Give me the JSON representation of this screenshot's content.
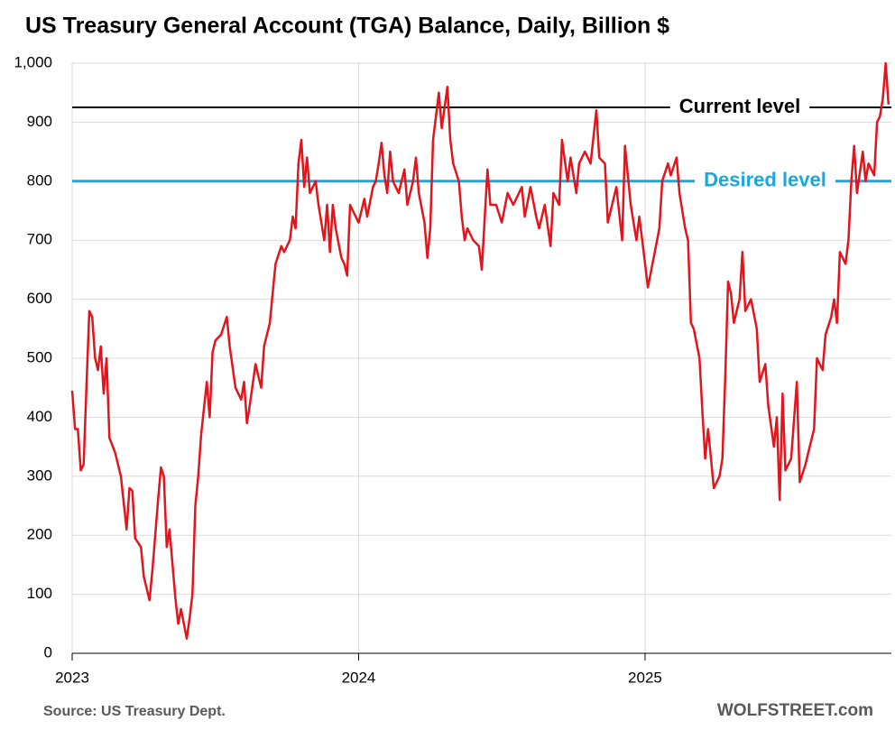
{
  "chart_data": {
    "type": "line",
    "title": "US Treasury General Account (TGA) Balance, Daily, Billion $",
    "source": "Source: US Treasury Dept.",
    "credit": "WOLFSTREET.com",
    "color": "#e3141b",
    "grid": true,
    "xlim": [
      2023,
      2025.86
    ],
    "xticks": [
      2023,
      2024,
      2025
    ],
    "ylim": [
      0,
      1000
    ],
    "yticks": [
      0,
      100,
      200,
      300,
      400,
      500,
      600,
      700,
      800,
      900,
      {
        "value": 1000,
        "label": "1,000"
      }
    ],
    "reference_lines": [
      {
        "label": "Current level",
        "value": 925,
        "color": "#000000"
      },
      {
        "label": "Desired level",
        "value": 800,
        "color": "#1aa7dc"
      }
    ],
    "x": [
      2023.0,
      2023.01,
      2023.02,
      2023.03,
      2023.04,
      2023.05,
      2023.06,
      2023.07,
      2023.08,
      2023.09,
      2023.1,
      2023.11,
      2023.12,
      2023.13,
      2023.15,
      2023.17,
      2023.19,
      2023.2,
      2023.21,
      2023.22,
      2023.24,
      2023.25,
      2023.27,
      2023.28,
      2023.3,
      2023.31,
      2023.32,
      2023.33,
      2023.34,
      2023.36,
      2023.37,
      2023.38,
      2023.4,
      2023.41,
      2023.42,
      2023.43,
      2023.44,
      2023.45,
      2023.47,
      2023.48,
      2023.49,
      2023.5,
      2023.52,
      2023.54,
      2023.55,
      2023.57,
      2023.59,
      2023.6,
      2023.61,
      2023.62,
      2023.64,
      2023.66,
      2023.67,
      2023.69,
      2023.7,
      2023.71,
      2023.73,
      2023.74,
      2023.76,
      2023.77,
      2023.78,
      2023.79,
      2023.8,
      2023.81,
      2023.82,
      2023.83,
      2023.85,
      2023.86,
      2023.88,
      2023.89,
      2023.9,
      2023.91,
      2023.92,
      2023.94,
      2023.95,
      2023.96,
      2023.97,
      2023.98,
      2024.0,
      2024.02,
      2024.03,
      2024.05,
      2024.06,
      2024.07,
      2024.08,
      2024.09,
      2024.1,
      2024.11,
      2024.12,
      2024.14,
      2024.16,
      2024.17,
      2024.19,
      2024.2,
      2024.21,
      2024.23,
      2024.24,
      2024.25,
      2024.26,
      2024.28,
      2024.29,
      2024.31,
      2024.32,
      2024.33,
      2024.35,
      2024.36,
      2024.37,
      2024.38,
      2024.4,
      2024.42,
      2024.43,
      2024.45,
      2024.46,
      2024.48,
      2024.5,
      2024.52,
      2024.54,
      2024.55,
      2024.57,
      2024.58,
      2024.6,
      2024.62,
      2024.63,
      2024.65,
      2024.67,
      2024.68,
      2024.7,
      2024.71,
      2024.73,
      2024.74,
      2024.76,
      2024.77,
      2024.79,
      2024.81,
      2024.83,
      2024.84,
      2024.86,
      2024.87,
      2024.89,
      2024.9,
      2024.92,
      2024.93,
      2024.95,
      2024.97,
      2024.98,
      2025.0,
      2025.01,
      2025.03,
      2025.05,
      2025.06,
      2025.08,
      2025.09,
      2025.11,
      2025.12,
      2025.14,
      2025.15,
      2025.16,
      2025.17,
      2025.19,
      2025.2,
      2025.21,
      2025.22,
      2025.24,
      2025.26,
      2025.27,
      2025.28,
      2025.29,
      2025.3,
      2025.31,
      2025.33,
      2025.34,
      2025.35,
      2025.37,
      2025.39,
      2025.4,
      2025.42,
      2025.43,
      2025.45,
      2025.46,
      2025.47,
      2025.48,
      2025.49,
      2025.51,
      2025.53,
      2025.54,
      2025.56,
      2025.57,
      2025.59,
      2025.6,
      2025.62,
      2025.63,
      2025.65,
      2025.66,
      2025.67,
      2025.68,
      2025.7,
      2025.71,
      2025.72,
      2025.73,
      2025.74,
      2025.76,
      2025.77,
      2025.78,
      2025.8,
      2025.81,
      2025.82,
      2025.83,
      2025.84,
      2025.85
    ],
    "values": [
      445,
      380,
      380,
      310,
      320,
      455,
      580,
      570,
      500,
      480,
      520,
      440,
      500,
      365,
      340,
      300,
      210,
      280,
      275,
      195,
      180,
      130,
      90,
      140,
      260,
      315,
      300,
      180,
      210,
      95,
      50,
      75,
      25,
      60,
      100,
      250,
      300,
      370,
      460,
      400,
      510,
      530,
      540,
      570,
      520,
      450,
      430,
      460,
      390,
      420,
      490,
      450,
      520,
      560,
      610,
      660,
      690,
      680,
      700,
      740,
      720,
      830,
      870,
      790,
      840,
      780,
      800,
      760,
      700,
      760,
      680,
      760,
      720,
      670,
      660,
      640,
      760,
      750,
      730,
      770,
      740,
      790,
      800,
      830,
      865,
      810,
      780,
      850,
      800,
      780,
      820,
      760,
      800,
      840,
      780,
      730,
      670,
      720,
      870,
      950,
      890,
      960,
      870,
      830,
      800,
      740,
      700,
      720,
      700,
      690,
      650,
      820,
      760,
      760,
      730,
      780,
      760,
      770,
      790,
      740,
      790,
      740,
      720,
      760,
      690,
      780,
      760,
      870,
      800,
      840,
      780,
      830,
      850,
      830,
      920,
      840,
      830,
      730,
      770,
      790,
      700,
      860,
      760,
      700,
      740,
      660,
      620,
      670,
      720,
      800,
      830,
      810,
      840,
      780,
      720,
      700,
      560,
      550,
      500,
      410,
      330,
      380,
      280,
      300,
      330,
      470,
      630,
      610,
      560,
      600,
      680,
      580,
      600,
      550,
      460,
      490,
      420,
      350,
      400,
      260,
      440,
      310,
      330,
      460,
      290,
      320,
      340,
      380,
      500,
      480,
      540,
      570,
      600,
      560,
      680,
      660,
      700,
      800,
      860,
      780,
      850,
      800,
      830,
      810,
      900,
      910,
      940,
      1000,
      930
    ]
  }
}
